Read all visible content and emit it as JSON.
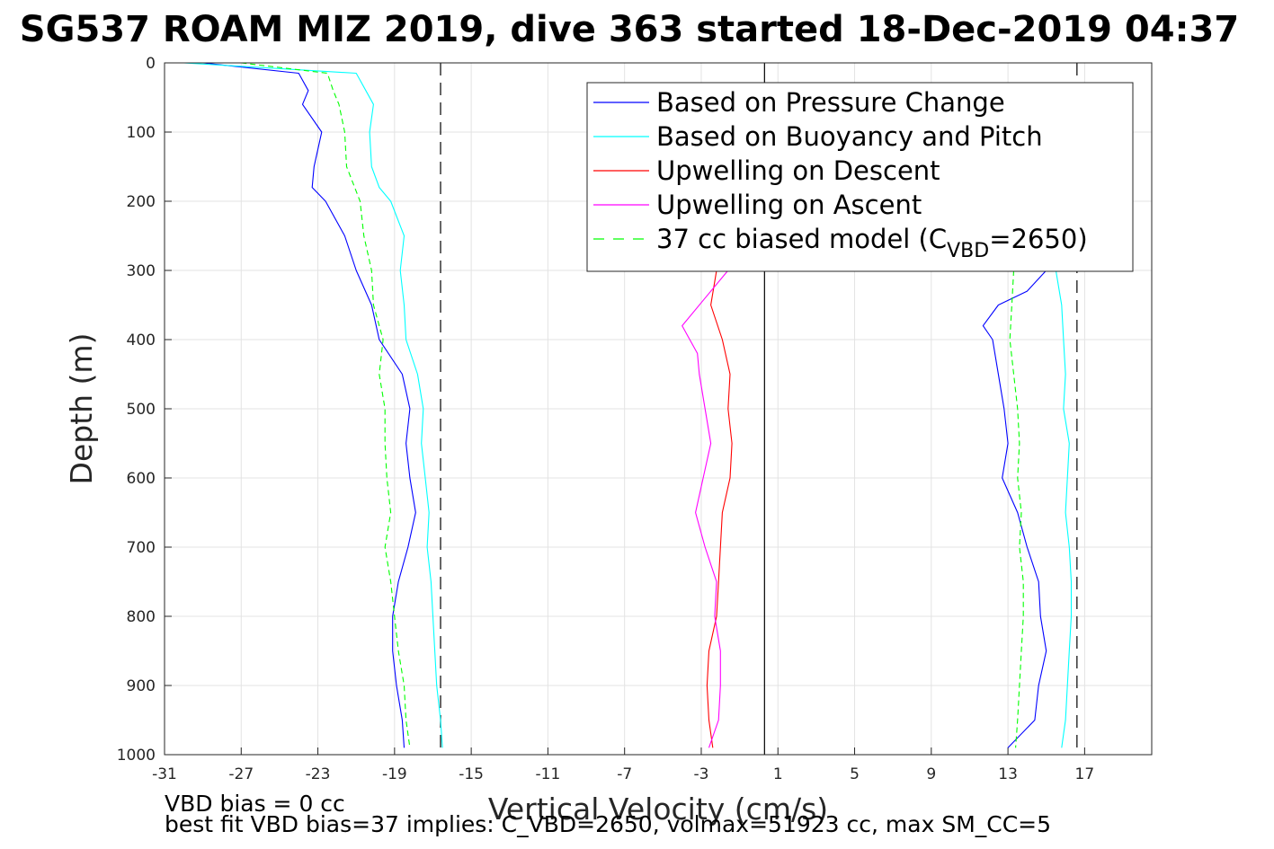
{
  "chart_data": {
    "type": "line",
    "title": "SG537 ROAM MIZ 2019, dive 363 started 18-Dec-2019 04:37",
    "xlabel": "Vertical Velocity (cm/s)",
    "ylabel": "Depth (m)",
    "xlim": [
      -31,
      20.5
    ],
    "ylim": [
      0,
      1000
    ],
    "y_reversed": true,
    "grid": true,
    "xticks": [
      "-31",
      "-27",
      "-23",
      "-19",
      "-15",
      "-11",
      "-7",
      "-3",
      "1",
      "5",
      "9",
      "13",
      "17"
    ],
    "yticks": [
      "0",
      "100",
      "200",
      "300",
      "400",
      "500",
      "600",
      "700",
      "800",
      "900",
      "1000"
    ],
    "legend_position": "top-right",
    "legend": [
      {
        "label": "Based on Pressure Change",
        "color": "#0000ff",
        "style": "solid"
      },
      {
        "label": "Based on Buoyancy and Pitch",
        "color": "#00ffff",
        "style": "solid"
      },
      {
        "label": "Upwelling on Descent",
        "color": "#ff0000",
        "style": "solid"
      },
      {
        "label": "Upwelling on Ascent",
        "color": "#ff00ff",
        "style": "solid"
      },
      {
        "label": "37 cc biased model (C",
        "sub": "VBD",
        "suffix": "=2650)",
        "color": "#00ff00",
        "style": "dashed"
      }
    ],
    "reference_lines": [
      {
        "x": -16.6,
        "style": "dashed",
        "color": "#000000"
      },
      {
        "x": 0.3,
        "style": "solid",
        "color": "#000000"
      },
      {
        "x": 16.6,
        "style": "dashed",
        "color": "#000000"
      }
    ],
    "series": [
      {
        "key": "pressure_descent",
        "color": "#0000ff",
        "style": "solid",
        "depth": [
          0,
          15,
          40,
          60,
          100,
          150,
          180,
          200,
          250,
          300,
          350,
          400,
          450,
          500,
          550,
          600,
          650,
          700,
          750,
          800,
          850,
          900,
          950,
          990
        ],
        "x": [
          -29,
          -24,
          -23.5,
          -23.8,
          -22.8,
          -23.2,
          -23.3,
          -22.6,
          -21.6,
          -21,
          -20.2,
          -19.8,
          -18.6,
          -18.2,
          -18.4,
          -18.2,
          -17.9,
          -18.3,
          -18.8,
          -19.1,
          -19.1,
          -18.9,
          -18.6,
          -18.5
        ]
      },
      {
        "key": "buoyancy_descent",
        "color": "#00ffff",
        "style": "solid",
        "depth": [
          0,
          15,
          40,
          60,
          100,
          150,
          180,
          200,
          250,
          300,
          350,
          400,
          450,
          500,
          550,
          600,
          650,
          700,
          750,
          800,
          850,
          900,
          950,
          990
        ],
        "x": [
          -30,
          -21,
          -20.5,
          -20.1,
          -20.3,
          -20.2,
          -19.8,
          -19.2,
          -18.5,
          -18.7,
          -18.5,
          -18.4,
          -17.8,
          -17.5,
          -17.6,
          -17.4,
          -17.2,
          -17.3,
          -17.1,
          -17,
          -16.9,
          -16.8,
          -16.6,
          -16.5
        ]
      },
      {
        "key": "model_descent",
        "color": "#00ff00",
        "style": "dashed",
        "depth": [
          0,
          15,
          40,
          60,
          100,
          150,
          200,
          250,
          300,
          350,
          400,
          450,
          500,
          550,
          600,
          650,
          700,
          750,
          800,
          850,
          900,
          950,
          990
        ],
        "x": [
          -27,
          -22.5,
          -22.2,
          -21.9,
          -21.6,
          -21.5,
          -20.8,
          -20.6,
          -20.2,
          -20.1,
          -19.6,
          -19.8,
          -19.5,
          -19.5,
          -19.4,
          -19.2,
          -19.5,
          -19.2,
          -19,
          -18.8,
          -18.5,
          -18.4,
          -18.2
        ]
      },
      {
        "key": "upwell_descent",
        "color": "#ff0000",
        "style": "solid",
        "depth": [
          300,
          350,
          400,
          450,
          500,
          550,
          600,
          650,
          700,
          750,
          800,
          850,
          900,
          950,
          990
        ],
        "x": [
          -2.2,
          -2.5,
          -1.9,
          -1.5,
          -1.6,
          -1.4,
          -1.5,
          -1.9,
          -2,
          -2.1,
          -2.2,
          -2.6,
          -2.7,
          -2.6,
          -2.4
        ]
      },
      {
        "key": "upwell_ascent",
        "color": "#ff00ff",
        "style": "solid",
        "depth": [
          300,
          340,
          380,
          420,
          450,
          500,
          550,
          600,
          650,
          700,
          750,
          800,
          850,
          900,
          950,
          990
        ],
        "x": [
          -1.6,
          -2.8,
          -4,
          -3.2,
          -3.1,
          -2.8,
          -2.5,
          -2.9,
          -3.3,
          -2.8,
          -2.2,
          -2.3,
          -2,
          -2,
          -2.1,
          -2.6
        ]
      },
      {
        "key": "pressure_ascent",
        "color": "#0000ff",
        "style": "solid",
        "depth": [
          300,
          330,
          350,
          380,
          400,
          450,
          500,
          550,
          600,
          650,
          700,
          750,
          800,
          850,
          900,
          950,
          990
        ],
        "x": [
          15,
          14,
          12.5,
          11.7,
          12.2,
          12.5,
          12.8,
          13,
          12.7,
          13.5,
          14,
          14.6,
          14.7,
          15,
          14.6,
          14.4,
          13
        ]
      },
      {
        "key": "buoyancy_ascent",
        "color": "#00ffff",
        "style": "solid",
        "depth": [
          300,
          350,
          400,
          450,
          500,
          550,
          600,
          650,
          700,
          750,
          800,
          850,
          900,
          950,
          990
        ],
        "x": [
          15.5,
          15.8,
          15.9,
          16,
          15.9,
          16.2,
          16.1,
          16,
          16.2,
          16.3,
          16.3,
          16.2,
          16.1,
          16,
          15.8
        ]
      },
      {
        "key": "model_ascent",
        "color": "#00ff00",
        "style": "dashed",
        "depth": [
          300,
          350,
          400,
          450,
          500,
          550,
          600,
          650,
          700,
          750,
          800,
          850,
          900,
          950,
          990
        ],
        "x": [
          13.3,
          13.2,
          13.1,
          13.3,
          13.5,
          13.6,
          13.5,
          13.7,
          13.6,
          13.8,
          13.8,
          13.7,
          13.6,
          13.5,
          13.4
        ]
      }
    ],
    "annotations": [
      "VBD bias = 0 cc",
      "best fit VBD bias=37 implies: C_VBD=2650, volmax=51923 cc, max SM_CC=5"
    ]
  }
}
